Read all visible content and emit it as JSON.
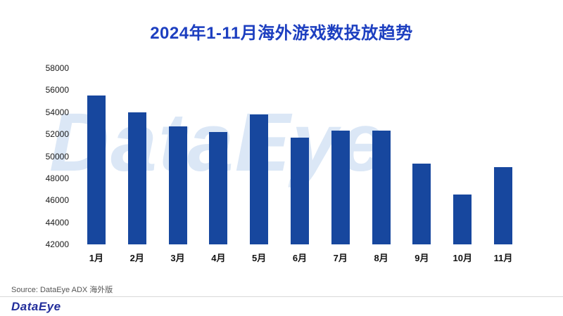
{
  "title": "2024年1-11月海外游戏数投放趋势",
  "watermark": "DataEye",
  "source": "Source: DataEye ADX 海外版",
  "footer_logo": "DataEye",
  "colors": {
    "title": "#1d3fc0",
    "bar": "#17479e",
    "watermark": "#dbe7f6",
    "logo": "#232e9b"
  },
  "chart_data": {
    "type": "bar",
    "title": "2024年1-11月海外游戏数投放趋势",
    "categories": [
      "1月",
      "2月",
      "3月",
      "4月",
      "5月",
      "6月",
      "7月",
      "8月",
      "9月",
      "10月",
      "11月"
    ],
    "values": [
      55500,
      54000,
      52700,
      52200,
      53800,
      51700,
      52300,
      52300,
      49300,
      46500,
      49000
    ],
    "ylim": [
      42000,
      58000
    ],
    "yticks": [
      42000,
      44000,
      46000,
      48000,
      50000,
      52000,
      54000,
      56000,
      58000
    ],
    "xlabel": "",
    "ylabel": "",
    "grid": false,
    "legend": false
  }
}
